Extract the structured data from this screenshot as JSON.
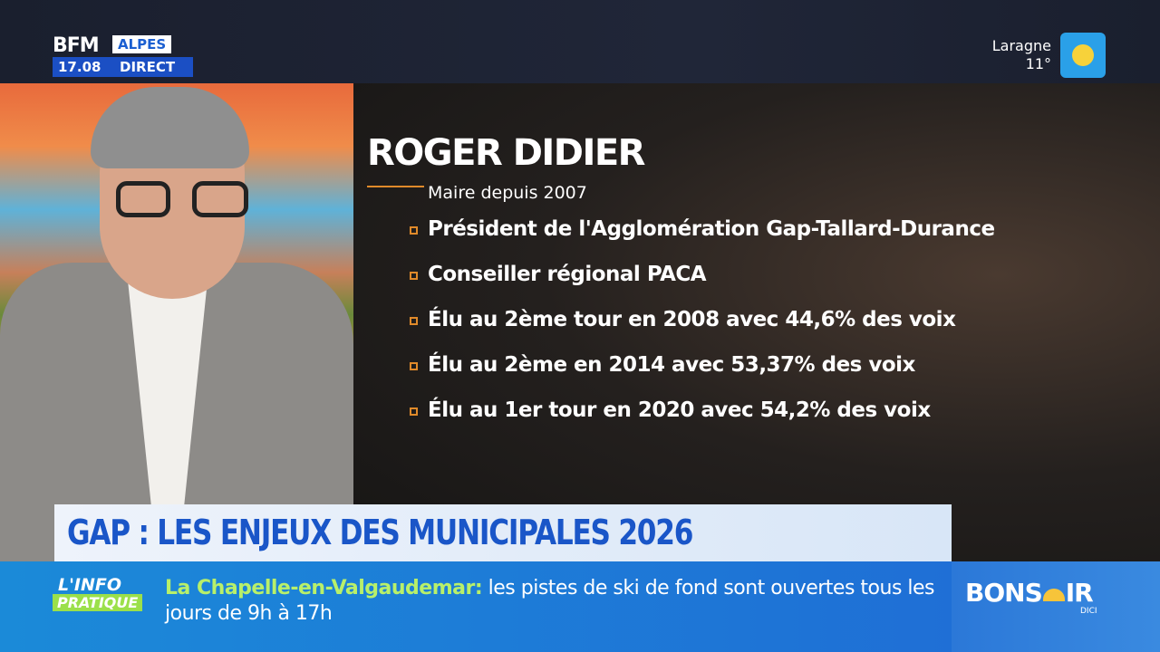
{
  "channel": {
    "brand": "BFM",
    "region": "ALPES",
    "time": "17.08",
    "status": "DIRECT"
  },
  "weather": {
    "city": "Laragne",
    "temperature": "11°"
  },
  "card": {
    "name": "ROGER DIDIER",
    "subtitle": "Maire depuis 2007",
    "items": [
      "Président de l'Agglomération Gap-Tallard-Durance",
      "Conseiller régional PACA",
      "Élu au 2ème tour en 2008 avec 44,6% des voix",
      "Élu au 2ème en 2014 avec 53,37% des voix",
      "Élu au 1er tour en 2020 avec 54,2% des voix"
    ]
  },
  "banner": {
    "title": "GAP : LES ENJEUX DES MUNICIPALES 2026"
  },
  "ticker": {
    "tag_top": "L'INFO",
    "tag_bottom": "PRATIQUE",
    "place": "La Chapelle-en-Valgaudemar:",
    "text": "les pistes de ski de fond sont ouvertes tous les jours de 9h à 17h"
  },
  "show": {
    "logo_start": "BONS",
    "logo_end": "IR",
    "logo_sub": "DICI"
  }
}
